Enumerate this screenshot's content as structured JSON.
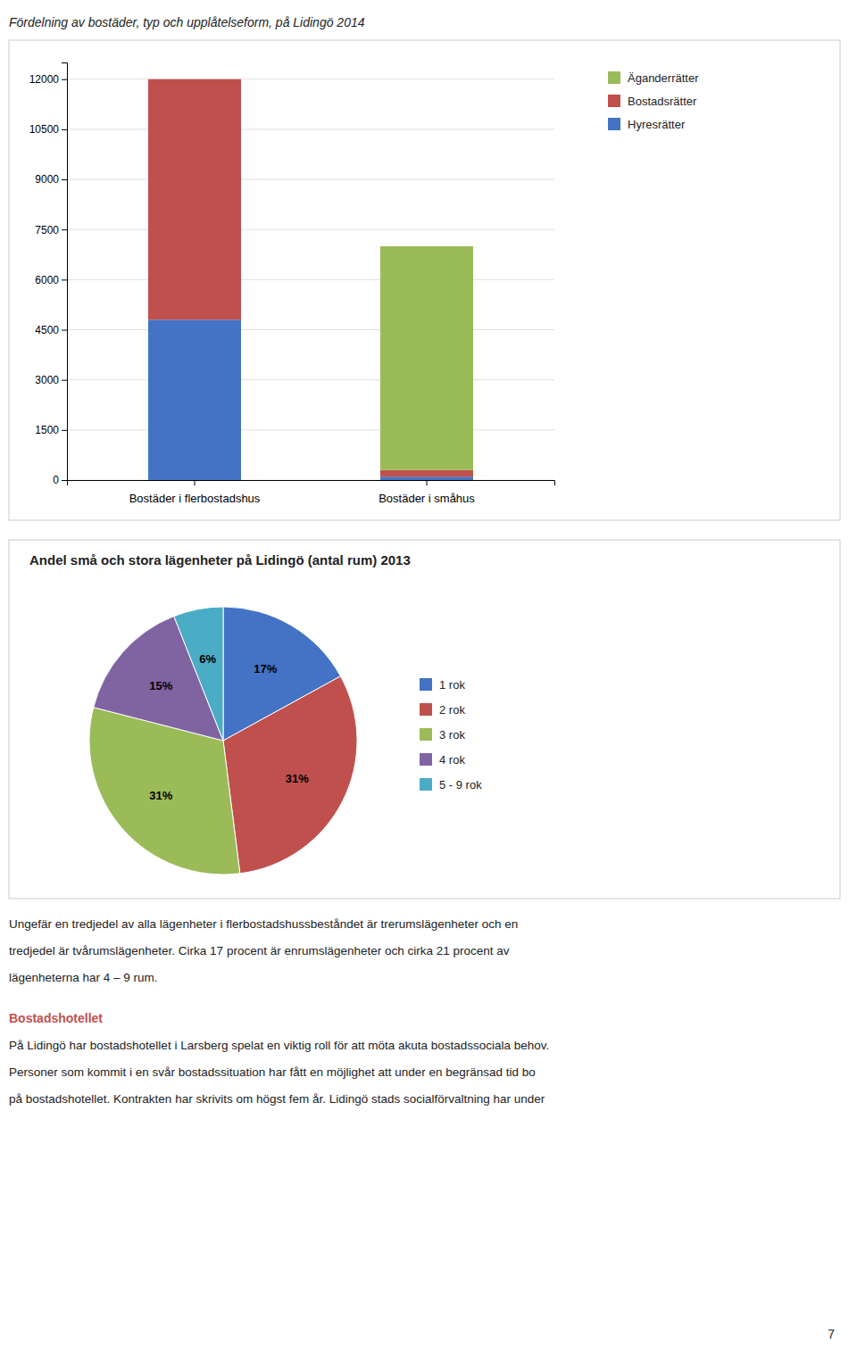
{
  "title": "Fördelning av bostäder, typ och upplåtelseform, på Lidingö 2014",
  "chart_data": [
    {
      "type": "bar",
      "stacked": true,
      "categories": [
        "Bostäder i flerbostadshus",
        "Bostäder i småhus"
      ],
      "series": [
        {
          "name": "Hyresrätter",
          "color": "#4472C4",
          "values": [
            4800,
            100
          ]
        },
        {
          "name": "Bostadsrätter",
          "color": "#C0504D",
          "values": [
            7200,
            200
          ]
        },
        {
          "name": "Äganderrätter",
          "color": "#9BBB59",
          "values": [
            0,
            6700
          ]
        }
      ],
      "ylim": [
        0,
        12500
      ],
      "yticks": [
        0,
        1500,
        3000,
        4500,
        6000,
        7500,
        9000,
        10500,
        12000
      ],
      "grid": true,
      "legend": "right"
    },
    {
      "type": "pie",
      "title": "Andel små och stora lägenheter på Lidingö (antal rum) 2013",
      "categories": [
        "1 rok",
        "2 rok",
        "3 rok",
        "4 rok",
        "5 - 9 rok"
      ],
      "values": [
        17,
        31,
        31,
        15,
        6
      ],
      "value_labels": [
        "17%",
        "31%",
        "31%",
        "15%",
        "6%"
      ],
      "colors": [
        "#4472C4",
        "#C0504D",
        "#9BBB59",
        "#8064A2",
        "#4BACC6"
      ],
      "data_labels": true,
      "legend": "right"
    }
  ],
  "text_blocks": [
    {
      "lines": [
        "Ungefär en tredjedel av alla lägenheter i flerbostadshussbeståndet är trerumslägenheter och en",
        "tredjedel är tvårumslägenheter. Cirka 17 procent är enrumslägenheter och cirka 21 procent av",
        "lägenheterna har 4 – 9 rum."
      ]
    },
    {
      "heading": "Bostadshotellet",
      "color": "#C0504D",
      "lines": [
        "På Lidingö har bostadshotellet i Larsberg spelat en viktig roll för att möta akuta bostadssociala behov.",
        "Personer som kommit i en svår bostadssituation har fått en möjlighet att under en begränsad tid bo",
        "på bostadshotellet. Kontrakten har skrivits om högst fem år. Lidingö stads socialförvaltning har under"
      ]
    }
  ],
  "page_number": "7"
}
